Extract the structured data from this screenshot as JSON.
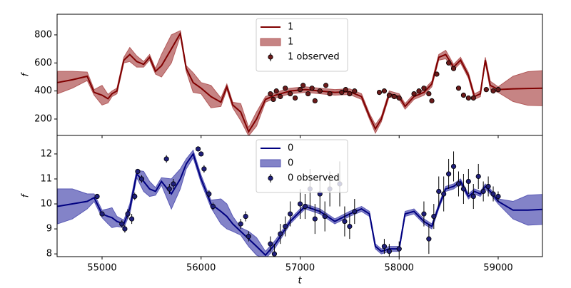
{
  "chart_data": [
    {
      "type": "line",
      "ylabel": "f",
      "legend": "upper center",
      "xlim": [
        54546,
        59447
      ],
      "ylim": [
        83,
        947
      ],
      "yticks": [
        200,
        400,
        600,
        800
      ],
      "x": [
        54550,
        54700,
        54850,
        54920,
        55000,
        55060,
        55100,
        55150,
        55220,
        55280,
        55350,
        55420,
        55480,
        55540,
        55600,
        55700,
        55790,
        55850,
        55920,
        56000,
        56100,
        56200,
        56260,
        56320,
        56400,
        56480,
        56560,
        56650,
        56750,
        56900,
        57050,
        57200,
        57350,
        57500,
        57620,
        57700,
        57760,
        57820,
        57900,
        58000,
        58060,
        58150,
        58250,
        58330,
        58400,
        58470,
        58550,
        58620,
        58700,
        58760,
        58820,
        58870,
        58920,
        59000,
        59150,
        59300,
        59447
      ],
      "series": [
        {
          "name": "1",
          "kind": "line",
          "color": "#800000",
          "values": [
            460,
            480,
            505,
            390,
            370,
            345,
            380,
            400,
            620,
            660,
            610,
            590,
            640,
            540,
            580,
            700,
            810,
            560,
            460,
            420,
            360,
            320,
            430,
            300,
            250,
            110,
            200,
            340,
            370,
            400,
            410,
            400,
            390,
            395,
            360,
            220,
            130,
            200,
            380,
            360,
            290,
            360,
            390,
            450,
            640,
            660,
            570,
            620,
            510,
            360,
            380,
            620,
            440,
            410,
            415,
            418,
            420
          ]
        },
        {
          "name": "1",
          "kind": "band",
          "color": "#b35b5b",
          "lower": [
            380,
            420,
            475,
            370,
            300,
            315,
            360,
            380,
            600,
            610,
            570,
            570,
            620,
            520,
            500,
            600,
            790,
            540,
            390,
            380,
            280,
            290,
            410,
            280,
            190,
            80,
            150,
            320,
            350,
            380,
            390,
            380,
            370,
            375,
            340,
            200,
            100,
            180,
            360,
            340,
            270,
            340,
            370,
            430,
            620,
            630,
            550,
            600,
            490,
            340,
            360,
            600,
            410,
            390,
            325,
            298,
            295
          ],
          "upper": [
            540,
            540,
            535,
            410,
            440,
            375,
            400,
            420,
            640,
            710,
            650,
            610,
            660,
            560,
            660,
            800,
            830,
            580,
            530,
            460,
            440,
            350,
            450,
            320,
            310,
            140,
            250,
            360,
            390,
            420,
            430,
            420,
            410,
            415,
            380,
            240,
            160,
            220,
            400,
            380,
            310,
            380,
            410,
            470,
            660,
            690,
            590,
            640,
            530,
            380,
            400,
            640,
            470,
            430,
            505,
            538,
            545
          ]
        },
        {
          "name": "1 observed",
          "kind": "observed",
          "color": "#6b1a1a",
          "x": [
            56700,
            56730,
            56760,
            56800,
            56850,
            56900,
            56950,
            57000,
            57030,
            57080,
            57120,
            57150,
            57200,
            57260,
            57300,
            57420,
            57460,
            57500,
            57550,
            57800,
            57850,
            57900,
            57950,
            58000,
            58150,
            58200,
            58250,
            58300,
            58330,
            58380,
            58500,
            58550,
            58600,
            58650,
            58700,
            58750,
            58880,
            58950,
            59000
          ],
          "values": [
            380,
            340,
            400,
            360,
            420,
            380,
            350,
            410,
            440,
            380,
            420,
            330,
            400,
            440,
            380,
            390,
            410,
            380,
            400,
            390,
            400,
            370,
            360,
            350,
            380,
            400,
            420,
            380,
            330,
            520,
            600,
            560,
            420,
            370,
            350,
            350,
            410,
            400,
            410
          ],
          "errors": [
            15,
            15,
            15,
            15,
            15,
            15,
            15,
            15,
            15,
            15,
            15,
            15,
            15,
            15,
            15,
            15,
            15,
            15,
            15,
            15,
            15,
            15,
            15,
            15,
            15,
            15,
            15,
            15,
            15,
            15,
            15,
            15,
            15,
            15,
            15,
            15,
            15,
            15,
            15
          ]
        }
      ]
    },
    {
      "type": "line",
      "ylabel": "f",
      "xlabel": "t",
      "legend": "upper center",
      "xlim": [
        54546,
        59447
      ],
      "ylim": [
        7.89,
        12.74
      ],
      "yticks": [
        8,
        9,
        10,
        11,
        12
      ],
      "xticks": [
        55000,
        56000,
        57000,
        58000,
        59000
      ],
      "x": [
        54550,
        54700,
        54850,
        54920,
        55000,
        55060,
        55100,
        55150,
        55220,
        55280,
        55350,
        55420,
        55480,
        55540,
        55600,
        55700,
        55790,
        55850,
        55920,
        56000,
        56100,
        56200,
        56260,
        56320,
        56400,
        56480,
        56560,
        56650,
        56750,
        56900,
        57050,
        57200,
        57350,
        57500,
        57620,
        57700,
        57760,
        57820,
        57900,
        58000,
        58060,
        58150,
        58250,
        58330,
        58400,
        58470,
        58550,
        58620,
        58700,
        58760,
        58820,
        58870,
        58920,
        59000,
        59150,
        59300,
        59447
      ],
      "series": [
        {
          "name": "0",
          "kind": "line",
          "color": "#000080",
          "values": [
            9.9,
            10.0,
            10.1,
            10.25,
            9.6,
            9.5,
            9.45,
            9.3,
            9.2,
            9.8,
            11.2,
            10.9,
            10.6,
            10.5,
            10.9,
            10.4,
            11.0,
            11.6,
            12.0,
            11.0,
            10.0,
            9.7,
            9.5,
            9.2,
            8.9,
            8.6,
            8.3,
            7.95,
            8.4,
            9.3,
            9.9,
            9.7,
            9.3,
            9.6,
            9.8,
            9.6,
            8.3,
            8.1,
            8.2,
            8.2,
            9.6,
            9.7,
            9.3,
            9.1,
            9.9,
            10.6,
            10.7,
            10.9,
            10.3,
            10.5,
            10.4,
            10.7,
            10.5,
            10.1,
            9.75,
            9.75,
            9.78
          ]
        },
        {
          "name": "0",
          "kind": "band",
          "color": "#5a5ab5",
          "lower": [
            9.2,
            9.4,
            9.8,
            10.1,
            9.45,
            9.2,
            9.05,
            9.1,
            9.05,
            9.6,
            11.05,
            10.5,
            10.3,
            10.35,
            10.75,
            9.8,
            10.6,
            11.4,
            11.85,
            10.85,
            9.85,
            9.2,
            9.0,
            8.9,
            8.75,
            8.3,
            7.95,
            7.8,
            8.25,
            9.2,
            9.8,
            9.6,
            9.2,
            9.5,
            9.7,
            9.5,
            8.2,
            8.0,
            8.1,
            8.1,
            9.5,
            9.6,
            9.2,
            9.0,
            9.8,
            10.5,
            10.6,
            10.8,
            10.2,
            10.4,
            10.3,
            10.6,
            10.4,
            10.0,
            9.4,
            9.15,
            9.18
          ],
          "upper": [
            10.6,
            10.6,
            10.4,
            10.4,
            9.75,
            9.8,
            9.85,
            9.5,
            9.35,
            10.0,
            11.35,
            11.3,
            10.9,
            10.65,
            11.05,
            11.0,
            11.4,
            11.8,
            12.15,
            11.15,
            10.15,
            10.2,
            10.0,
            9.5,
            9.05,
            8.9,
            8.65,
            8.1,
            8.55,
            9.4,
            10.0,
            9.8,
            9.4,
            9.7,
            9.9,
            9.7,
            8.4,
            8.2,
            8.3,
            8.3,
            9.7,
            9.8,
            9.4,
            9.2,
            10.0,
            10.7,
            10.8,
            11.0,
            10.4,
            10.6,
            10.5,
            10.8,
            10.6,
            10.2,
            10.1,
            10.35,
            10.38
          ]
        },
        {
          "name": "0 observed",
          "kind": "observed",
          "color": "#1f1f7a",
          "x": [
            54950,
            55000,
            55200,
            55230,
            55260,
            55300,
            55330,
            55360,
            55400,
            55650,
            55680,
            55720,
            55970,
            56000,
            56030,
            56080,
            56120,
            56400,
            56450,
            56480,
            56700,
            56740,
            56800,
            56850,
            56900,
            57000,
            57050,
            57100,
            57150,
            57200,
            57250,
            57300,
            57400,
            57450,
            57500,
            57550,
            57850,
            57900,
            58000,
            58250,
            58300,
            58350,
            58400,
            58450,
            58500,
            58550,
            58600,
            58650,
            58700,
            58750,
            58800,
            58850,
            58900,
            58950,
            59000
          ],
          "values": [
            10.3,
            9.6,
            9.2,
            9.0,
            9.6,
            9.4,
            10.3,
            11.3,
            11.0,
            11.8,
            10.6,
            10.8,
            12.2,
            12.0,
            11.4,
            10.4,
            9.9,
            9.2,
            9.5,
            8.7,
            8.4,
            8.0,
            8.8,
            9.1,
            9.6,
            10.0,
            9.9,
            10.6,
            9.4,
            10.4,
            9.5,
            10.6,
            10.8,
            9.3,
            9.1,
            9.7,
            8.3,
            8.1,
            8.2,
            9.6,
            8.6,
            9.5,
            10.5,
            10.4,
            11.2,
            11.5,
            10.8,
            10.6,
            10.9,
            10.3,
            11.1,
            10.5,
            10.7,
            10.4,
            10.3
          ],
          "errors": [
            0.1,
            0.1,
            0.15,
            0.15,
            0.2,
            0.2,
            0.15,
            0.1,
            0.15,
            0.15,
            0.2,
            0.2,
            0.1,
            0.1,
            0.15,
            0.15,
            0.15,
            0.2,
            0.2,
            0.2,
            0.3,
            0.4,
            0.4,
            0.4,
            0.5,
            0.6,
            0.5,
            0.8,
            0.6,
            0.8,
            0.6,
            0.7,
            0.9,
            0.6,
            0.5,
            0.5,
            0.3,
            0.3,
            0.3,
            0.5,
            0.6,
            0.5,
            0.6,
            0.7,
            0.6,
            0.6,
            0.5,
            0.6,
            0.5,
            0.5,
            0.5,
            0.4,
            0.4,
            0.3,
            0.2
          ]
        }
      ]
    }
  ]
}
